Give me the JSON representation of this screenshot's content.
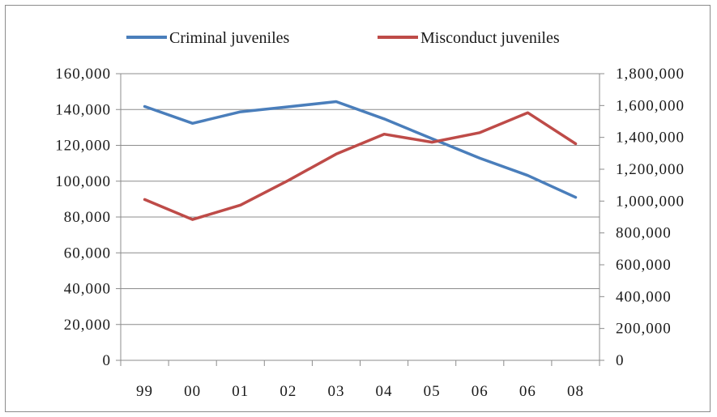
{
  "chart_data": {
    "type": "line",
    "categories": [
      "99",
      "00",
      "01",
      "02",
      "03",
      "04",
      "05",
      "06",
      "06",
      "08"
    ],
    "series": [
      {
        "name": "Criminal juveniles",
        "axis": "left",
        "color": "#4a7ebb",
        "values": [
          141700,
          132300,
          138700,
          141500,
          144400,
          134800,
          123700,
          112800,
          103200,
          91000
        ]
      },
      {
        "name": "Misconduct juveniles",
        "axis": "right",
        "color": "#be4b48",
        "values": [
          1010000,
          884000,
          975000,
          1130000,
          1295000,
          1420000,
          1370000,
          1430000,
          1555000,
          1360000
        ]
      }
    ],
    "y_left": {
      "range": [
        0,
        160000
      ],
      "ticks": [
        "0",
        "20,000",
        "40,000",
        "60,000",
        "80,000",
        "100,000",
        "120,000",
        "140,000",
        "160,000"
      ]
    },
    "y_right": {
      "range": [
        0,
        1800000
      ],
      "ticks": [
        "0",
        "200,000",
        "400,000",
        "600,000",
        "800,000",
        "1,000,000",
        "1,200,000",
        "1,400,000",
        "1,600,000",
        "1,800,000"
      ]
    },
    "grid": "horizontal",
    "legend_position": "top"
  }
}
